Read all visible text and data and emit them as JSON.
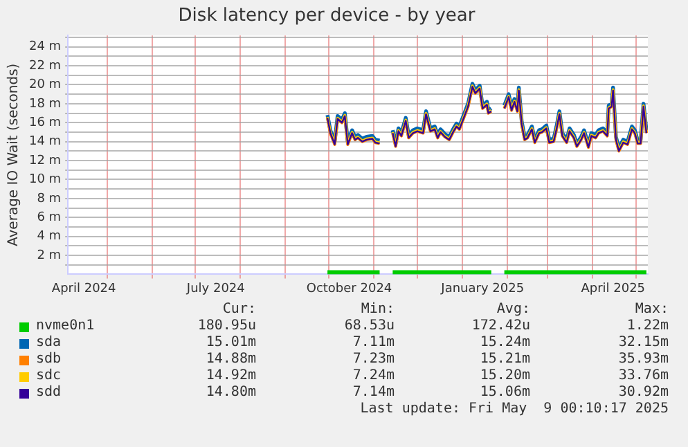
{
  "chart_data": {
    "type": "line",
    "title": "Disk latency per device - by year",
    "ylabel": "Average IO Wait (seconds)",
    "x": [
      "2024-09-30",
      "2024-10-02",
      "2024-10-05",
      "2024-10-07",
      "2024-10-10",
      "2024-10-12",
      "2024-10-14",
      "2024-10-17",
      "2024-10-19",
      "2024-10-21",
      "2024-10-24",
      "2024-10-27",
      "2024-10-31",
      "2024-11-02",
      "2024-11-05",
      "2024-11-10",
      "2024-11-14",
      "2024-11-16",
      "2024-11-18",
      "2024-11-20",
      "2024-11-23",
      "2024-11-25",
      "2024-11-28",
      "2024-12-01",
      "2024-12-05",
      "2024-12-07",
      "2024-12-10",
      "2024-12-13",
      "2024-12-15",
      "2024-12-17",
      "2024-12-20",
      "2024-12-23",
      "2024-12-26",
      "2024-12-28",
      "2024-12-30",
      "2025-01-02",
      "2025-01-05",
      "2025-01-08",
      "2025-01-10",
      "2025-01-13",
      "2025-01-15",
      "2025-01-18",
      "2025-01-19",
      "2025-01-21",
      "2025-01-26",
      "2025-01-30",
      "2025-02-02",
      "2025-02-04",
      "2025-02-06",
      "2025-02-08",
      "2025-02-09",
      "2025-02-11",
      "2025-02-13",
      "2025-02-15",
      "2025-02-18",
      "2025-02-20",
      "2025-02-23",
      "2025-02-25",
      "2025-02-28",
      "2025-03-02",
      "2025-03-05",
      "2025-03-07",
      "2025-03-09",
      "2025-03-11",
      "2025-03-14",
      "2025-03-16",
      "2025-03-19",
      "2025-03-21",
      "2025-03-24",
      "2025-03-26",
      "2025-03-29",
      "2025-03-31",
      "2025-04-03",
      "2025-04-05",
      "2025-04-08",
      "2025-04-11",
      "2025-04-12",
      "2025-04-14",
      "2025-04-15",
      "2025-04-17",
      "2025-04-19",
      "2025-04-22",
      "2025-04-25",
      "2025-04-28",
      "2025-04-30",
      "2025-05-02",
      "2025-05-04",
      "2025-05-06",
      "2025-05-08"
    ],
    "series": [
      {
        "name": "nvme0n1",
        "color": "#00cc00",
        "values": [
          0.2,
          0.2,
          0.2,
          0.2,
          0.2,
          0.2,
          0.2,
          0.2,
          0.2,
          0.2,
          0.2,
          0.2,
          0.2,
          0.2,
          0.2,
          null,
          0.2,
          0.2,
          0.2,
          0.2,
          0.2,
          0.2,
          0.2,
          0.2,
          0.2,
          0.2,
          0.2,
          0.2,
          0.2,
          0.2,
          0.2,
          0.2,
          0.2,
          0.2,
          0.2,
          0.2,
          0.2,
          0.2,
          0.2,
          0.2,
          0.2,
          0.2,
          0.2,
          0.2,
          null,
          0.2,
          0.2,
          0.2,
          0.2,
          0.2,
          0.2,
          0.2,
          0.2,
          0.2,
          0.2,
          0.2,
          0.2,
          0.2,
          0.2,
          0.2,
          0.2,
          0.2,
          0.2,
          0.2,
          0.2,
          0.2,
          0.2,
          0.2,
          0.2,
          0.2,
          0.2,
          0.2,
          0.2,
          0.2,
          0.2,
          0.2,
          0.2,
          0.2,
          0.2,
          0.2,
          0.2,
          0.2,
          0.2,
          0.2,
          0.2,
          0.2,
          0.2,
          0.2,
          0.2
        ]
      },
      {
        "name": "sda",
        "color": "#0066b3",
        "values": [
          16.8,
          15.2,
          14.0,
          16.7,
          16.3,
          17.0,
          14.0,
          15.2,
          14.5,
          14.7,
          14.3,
          14.5,
          14.6,
          14.2,
          14.1,
          null,
          15.2,
          13.8,
          15.4,
          14.9,
          16.5,
          14.7,
          15.2,
          15.4,
          15.2,
          17.2,
          15.4,
          15.6,
          14.7,
          15.3,
          14.8,
          14.5,
          15.4,
          15.9,
          15.6,
          16.8,
          18.0,
          20.1,
          19.4,
          19.9,
          17.8,
          18.2,
          17.3,
          17.5,
          null,
          17.8,
          19.0,
          17.6,
          18.5,
          17.5,
          19.7,
          16.1,
          14.5,
          14.7,
          15.6,
          14.2,
          15.2,
          15.3,
          15.7,
          14.2,
          14.3,
          15.6,
          17.2,
          14.9,
          14.2,
          15.4,
          14.7,
          13.8,
          14.5,
          15.2,
          13.7,
          14.9,
          14.7,
          15.2,
          15.4,
          14.9,
          17.8,
          18.0,
          19.7,
          14.5,
          13.3,
          14.2,
          14.0,
          15.6,
          15.2,
          14.1,
          14.1,
          18.0,
          15.2
        ]
      },
      {
        "name": "sdb",
        "color": "#ff8000",
        "values": [
          16.5,
          14.9,
          13.7,
          16.4,
          16.0,
          16.7,
          13.7,
          14.9,
          14.2,
          14.4,
          14.0,
          14.2,
          14.3,
          13.9,
          13.8,
          null,
          14.9,
          13.5,
          15.1,
          14.6,
          16.2,
          14.4,
          14.9,
          15.1,
          14.9,
          16.9,
          15.1,
          15.3,
          14.4,
          15.0,
          14.5,
          14.2,
          15.1,
          15.6,
          15.3,
          16.5,
          17.7,
          19.8,
          19.1,
          19.6,
          17.5,
          17.9,
          17.0,
          17.2,
          null,
          17.5,
          18.7,
          17.3,
          18.2,
          17.2,
          19.4,
          15.8,
          14.2,
          14.4,
          15.3,
          13.9,
          14.9,
          15.0,
          15.4,
          13.9,
          14.0,
          15.3,
          16.9,
          14.6,
          13.9,
          15.1,
          14.4,
          13.5,
          14.2,
          14.9,
          13.4,
          14.6,
          14.4,
          14.9,
          15.1,
          14.6,
          17.5,
          17.7,
          19.4,
          14.2,
          13.0,
          13.9,
          13.7,
          15.3,
          14.9,
          13.8,
          13.8,
          17.7,
          14.9
        ]
      },
      {
        "name": "sdc",
        "color": "#ffcc00",
        "values": [
          16.6,
          15.0,
          13.8,
          16.5,
          16.1,
          16.8,
          13.8,
          15.0,
          14.3,
          14.5,
          14.1,
          14.3,
          14.4,
          14.0,
          13.9,
          null,
          15.0,
          13.6,
          15.2,
          14.7,
          16.3,
          14.5,
          15.0,
          15.2,
          15.0,
          17.0,
          15.2,
          15.4,
          14.5,
          15.1,
          14.6,
          14.3,
          15.2,
          15.7,
          15.4,
          16.6,
          17.8,
          19.9,
          19.2,
          19.7,
          17.6,
          18.0,
          17.1,
          17.3,
          null,
          17.6,
          18.8,
          17.4,
          18.3,
          17.3,
          19.5,
          15.9,
          14.3,
          14.5,
          15.4,
          14.0,
          15.0,
          15.1,
          15.5,
          14.0,
          14.1,
          15.4,
          17.0,
          14.7,
          14.0,
          15.2,
          14.5,
          13.6,
          14.3,
          15.0,
          13.5,
          14.7,
          14.5,
          15.0,
          15.2,
          14.7,
          17.6,
          17.8,
          19.5,
          14.3,
          13.1,
          14.0,
          13.8,
          15.4,
          15.0,
          13.9,
          13.9,
          17.8,
          15.0
        ]
      },
      {
        "name": "sdd",
        "color": "#330099",
        "values": [
          16.5,
          14.9,
          13.7,
          16.4,
          16.0,
          16.7,
          13.7,
          14.9,
          14.2,
          14.4,
          14.0,
          14.2,
          14.3,
          13.9,
          13.8,
          null,
          14.9,
          13.5,
          15.1,
          14.6,
          16.2,
          14.4,
          14.9,
          15.1,
          14.9,
          16.9,
          15.1,
          15.3,
          14.4,
          15.0,
          14.5,
          14.2,
          15.1,
          15.6,
          15.3,
          16.5,
          17.7,
          19.8,
          19.1,
          19.6,
          17.5,
          17.9,
          17.0,
          17.2,
          null,
          17.5,
          18.7,
          17.3,
          18.2,
          17.2,
          19.4,
          15.8,
          14.2,
          14.4,
          15.3,
          13.9,
          14.9,
          15.0,
          15.4,
          13.9,
          14.0,
          15.3,
          16.9,
          14.6,
          13.9,
          15.1,
          14.4,
          13.5,
          14.2,
          14.9,
          13.4,
          14.6,
          14.4,
          14.9,
          15.1,
          14.6,
          17.5,
          17.7,
          19.4,
          14.2,
          13.0,
          13.9,
          13.7,
          15.3,
          14.9,
          13.8,
          13.8,
          17.7,
          14.9
        ]
      }
    ],
    "xlim": [
      "2024-04-04",
      "2025-05-09"
    ],
    "xticks": [
      {
        "value": "2024-04-15",
        "label": "April 2024"
      },
      {
        "value": "2024-05-01",
        "label": null
      },
      {
        "value": "2024-06-01",
        "label": null
      },
      {
        "value": "2024-07-01",
        "label": null
      },
      {
        "value": "2024-07-15",
        "label": "July 2024"
      },
      {
        "value": "2024-08-01",
        "label": null
      },
      {
        "value": "2024-09-01",
        "label": null
      },
      {
        "value": "2024-10-01",
        "label": null
      },
      {
        "value": "2024-10-15",
        "label": "October 2024"
      },
      {
        "value": "2024-11-01",
        "label": null
      },
      {
        "value": "2024-12-01",
        "label": null
      },
      {
        "value": "2025-01-01",
        "label": null
      },
      {
        "value": "2025-01-15",
        "label": "January 2025"
      },
      {
        "value": "2025-02-01",
        "label": null
      },
      {
        "value": "2025-03-01",
        "label": null
      },
      {
        "value": "2025-04-01",
        "label": null
      },
      {
        "value": "2025-04-15",
        "label": "April 2025"
      },
      {
        "value": "2025-05-01",
        "label": null
      }
    ],
    "ylim": [
      0,
      25.2
    ],
    "yticks": [
      {
        "value": 1,
        "label": null
      },
      {
        "value": 2,
        "label": "2 m"
      },
      {
        "value": 3,
        "label": null
      },
      {
        "value": 4,
        "label": "4 m"
      },
      {
        "value": 5,
        "label": null
      },
      {
        "value": 6,
        "label": "6 m"
      },
      {
        "value": 7,
        "label": null
      },
      {
        "value": 8,
        "label": "8 m"
      },
      {
        "value": 9,
        "label": null
      },
      {
        "value": 10,
        "label": "10 m"
      },
      {
        "value": 11,
        "label": null
      },
      {
        "value": 12,
        "label": "12 m"
      },
      {
        "value": 13,
        "label": null
      },
      {
        "value": 14,
        "label": "14 m"
      },
      {
        "value": 15,
        "label": null
      },
      {
        "value": 16,
        "label": "16 m"
      },
      {
        "value": 17,
        "label": null
      },
      {
        "value": 18,
        "label": "18 m"
      },
      {
        "value": 19,
        "label": null
      },
      {
        "value": 20,
        "label": "20 m"
      },
      {
        "value": 21,
        "label": null
      },
      {
        "value": 22,
        "label": "22 m"
      },
      {
        "value": 23,
        "label": null
      },
      {
        "value": 24,
        "label": "24 m"
      },
      {
        "value": 25,
        "label": null
      }
    ],
    "grid": true,
    "legend": "bottom",
    "marker": "none",
    "line_style": "solid",
    "annotations": [
      "Cur:",
      "Min:",
      "Avg:",
      "Max:",
      "180.95u",
      "68.53u",
      "172.42u",
      "1.22m",
      "15.01m",
      "7.11m",
      "15.24m",
      "32.15m",
      "14.88m",
      "7.23m",
      "15.21m",
      "35.93m",
      "14.92m",
      "7.24m",
      "15.20m",
      "33.76m",
      "14.80m",
      "7.14m",
      "15.06m",
      "30.92m",
      "Last update: Fri May  9 00:10:17 2025"
    ]
  }
}
